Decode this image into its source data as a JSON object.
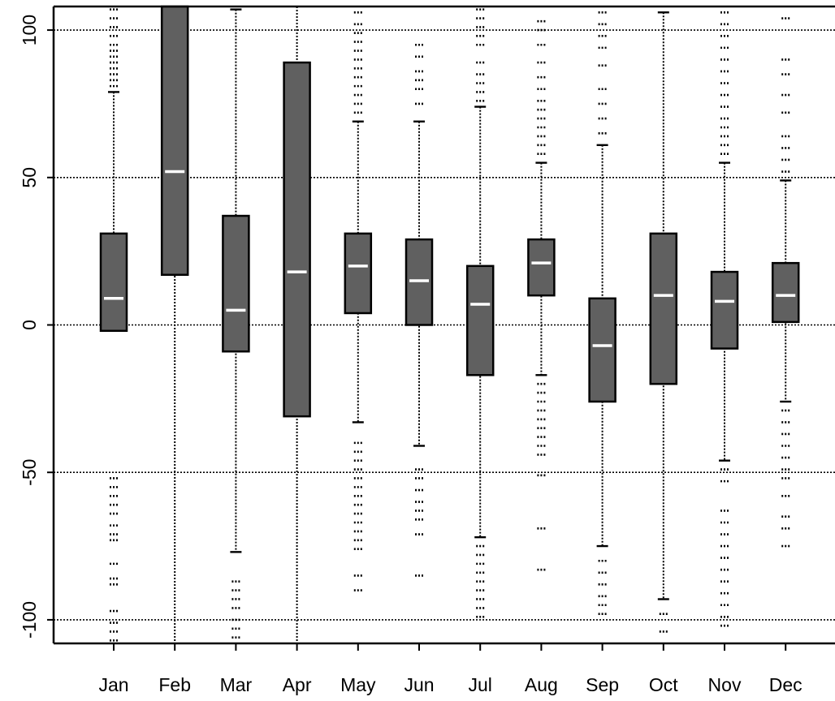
{
  "chart_data": {
    "type": "boxplot",
    "title": "",
    "xlabel": "",
    "ylabel": "",
    "ylim": [
      -108,
      108
    ],
    "yticks": [
      -100,
      -50,
      0,
      50,
      100
    ],
    "ytick_labels": [
      "-100",
      "-50",
      "0",
      "50",
      "100"
    ],
    "grid": true,
    "categories": [
      "Jan",
      "Feb",
      "Mar",
      "Apr",
      "May",
      "Jun",
      "Jul",
      "Aug",
      "Sep",
      "Oct",
      "Nov",
      "Dec"
    ],
    "colors": {
      "box_fill": "#606060",
      "box_border": "#000000",
      "median": "#ffffff",
      "grid": "#000000"
    },
    "boxes": [
      {
        "month": "Jan",
        "q1": -2,
        "median": 9,
        "q3": 31,
        "whisker_low": -2,
        "whisker_high": 79,
        "outliers_high": [
          81,
          83,
          85,
          87,
          89,
          91,
          93,
          95,
          98,
          101,
          104,
          107
        ],
        "outliers_low": [
          -52,
          -55,
          -58,
          -61,
          -64,
          -68,
          -71,
          -73,
          -81,
          -86,
          -88,
          -97,
          -101,
          -104,
          -107
        ]
      },
      {
        "month": "Feb",
        "q1": 17,
        "median": 52,
        "q3": 108,
        "whisker_low": -108,
        "whisker_high": 108,
        "outliers_high": [],
        "outliers_low": []
      },
      {
        "month": "Mar",
        "q1": -9,
        "median": 5,
        "q3": 37,
        "whisker_low": -77,
        "whisker_high": 107,
        "outliers_high": [],
        "outliers_low": [
          -87,
          -90,
          -93,
          -96,
          -100,
          -103,
          -106
        ]
      },
      {
        "month": "Apr",
        "q1": -31,
        "median": 18,
        "q3": 89,
        "whisker_low": -108,
        "whisker_high": 108,
        "outliers_high": [],
        "outliers_low": []
      },
      {
        "month": "May",
        "q1": 4,
        "median": 20,
        "q3": 31,
        "whisker_low": -33,
        "whisker_high": 69,
        "outliers_high": [
          72,
          75,
          78,
          81,
          84,
          87,
          90,
          93,
          96,
          99,
          102,
          106
        ],
        "outliers_low": [
          -40,
          -43,
          -46,
          -49,
          -52,
          -55,
          -58,
          -61,
          -64,
          -67,
          -70,
          -73,
          -76,
          -85,
          -90
        ]
      },
      {
        "month": "Jun",
        "q1": 0,
        "median": 15,
        "q3": 29,
        "whisker_low": -41,
        "whisker_high": 69,
        "outliers_high": [
          75,
          80,
          83,
          86,
          91,
          95
        ],
        "outliers_low": [
          -49,
          -52,
          -56,
          -60,
          -63,
          -66,
          -71,
          -85
        ]
      },
      {
        "month": "Jul",
        "q1": -17,
        "median": 7,
        "q3": 20,
        "whisker_low": -72,
        "whisker_high": 74,
        "outliers_high": [
          76,
          79,
          82,
          85,
          89,
          95,
          98,
          101,
          104,
          107
        ],
        "outliers_low": [
          -75,
          -78,
          -81,
          -84,
          -87,
          -90,
          -93,
          -96,
          -99
        ]
      },
      {
        "month": "Aug",
        "q1": 10,
        "median": 21,
        "q3": 29,
        "whisker_low": -17,
        "whisker_high": 55,
        "outliers_high": [
          58,
          61,
          64,
          67,
          70,
          73,
          76,
          80,
          84,
          89,
          95,
          100,
          103
        ],
        "outliers_low": [
          -20,
          -23,
          -26,
          -29,
          -32,
          -35,
          -38,
          -41,
          -44,
          -51,
          -69,
          -83
        ]
      },
      {
        "month": "Sep",
        "q1": -26,
        "median": -7,
        "q3": 9,
        "whisker_low": -75,
        "whisker_high": 61,
        "outliers_high": [
          65,
          70,
          75,
          80,
          88,
          94,
          98,
          102,
          106
        ],
        "outliers_low": [
          -80,
          -84,
          -88,
          -92,
          -95,
          -98
        ]
      },
      {
        "month": "Oct",
        "q1": -20,
        "median": 10,
        "q3": 31,
        "whisker_low": -93,
        "whisker_high": 106,
        "outliers_high": [],
        "outliers_low": [
          -98,
          -104
        ]
      },
      {
        "month": "Nov",
        "q1": -8,
        "median": 8,
        "q3": 18,
        "whisker_low": -46,
        "whisker_high": 55,
        "outliers_high": [
          58,
          61,
          64,
          67,
          70,
          74,
          78,
          82,
          86,
          90,
          94,
          98,
          102,
          106
        ],
        "outliers_low": [
          -49,
          -53,
          -63,
          -67,
          -71,
          -75,
          -79,
          -83,
          -87,
          -91,
          -95,
          -99,
          -102
        ]
      },
      {
        "month": "Dec",
        "q1": 1,
        "median": 10,
        "q3": 21,
        "whisker_low": -26,
        "whisker_high": 49,
        "outliers_high": [
          52,
          56,
          60,
          64,
          72,
          78,
          85,
          90,
          104
        ],
        "outliers_low": [
          -29,
          -33,
          -37,
          -41,
          -45,
          -49,
          -52,
          -58,
          -65,
          -69,
          -75
        ]
      }
    ]
  }
}
